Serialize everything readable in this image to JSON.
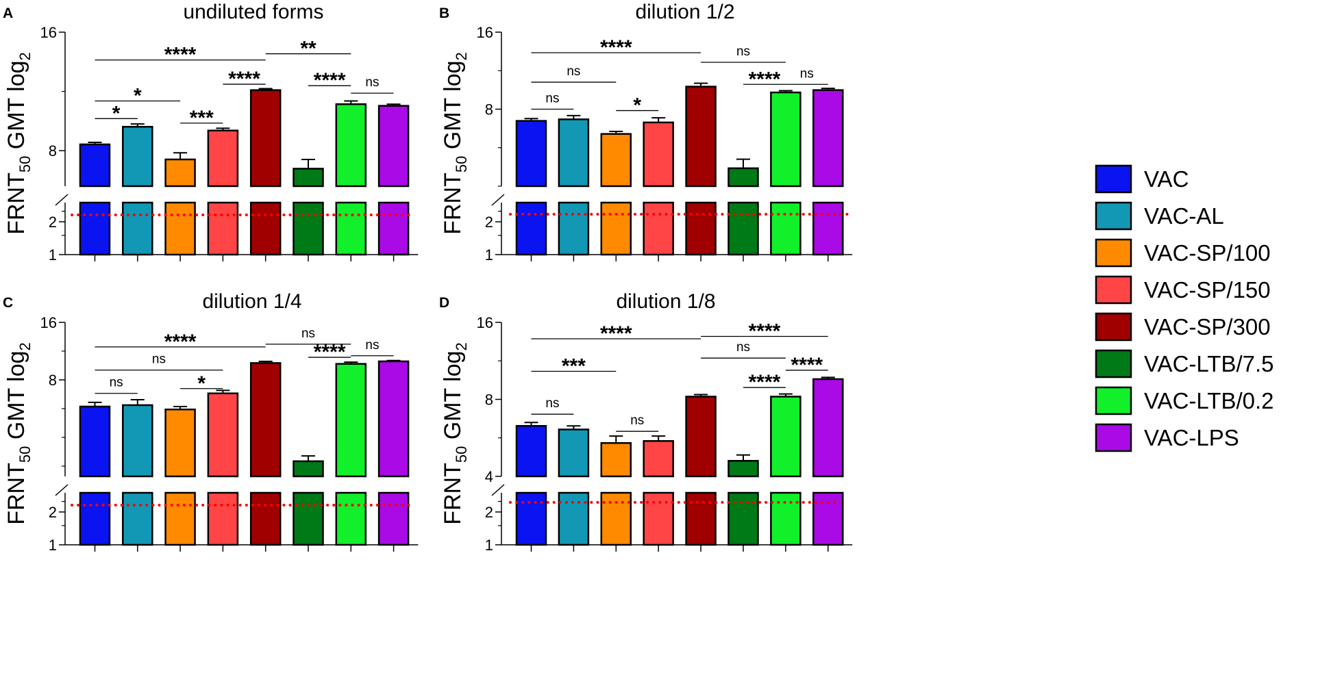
{
  "figure": {
    "ylabel_main": "FRNT",
    "ylabel_sub": "50",
    "ylabel_rest": " GMT log",
    "ylabel_sup": "2"
  },
  "colors": {
    "VAC": "#0a14f0",
    "VAC-AL": "#1298b5",
    "VAC-SP/100": "#ff8a00",
    "VAC-SP/150": "#ff4545",
    "VAC-SP/300": "#a00000",
    "VAC-LTB/7.5": "#007a16",
    "VAC-LTB/0.2": "#11f02a",
    "VAC-LPS": "#aa0ae6",
    "threshold": "#ff0000"
  },
  "legend": [
    "VAC",
    "VAC-AL",
    "VAC-SP/100",
    "VAC-SP/150",
    "VAC-SP/300",
    "VAC-LTB/7.5",
    "VAC-LTB/0.2",
    "VAC-LPS"
  ],
  "chart_data": [
    {
      "panel": "A",
      "title": "undiluted forms",
      "type": "bar",
      "categories": [
        "VAC",
        "VAC-AL",
        "VAC-SP/100",
        "VAC-SP/150",
        "VAC-SP/300",
        "VAC-LTB/7.5",
        "VAC-LTB/0.2",
        "VAC-LPS"
      ],
      "values": [
        8.3,
        9.2,
        7.6,
        9.0,
        11.4,
        7.2,
        10.5,
        10.4
      ],
      "errors": [
        0.1,
        0.15,
        0.3,
        0.12,
        0.1,
        0.4,
        0.2,
        0.1
      ],
      "ylim_upper": [
        6.5,
        16
      ],
      "ylim_lower": [
        1,
        3
      ],
      "yticks_upper": [
        "8",
        "16"
      ],
      "yticks_lower": [
        "1",
        "2"
      ],
      "threshold": 2.3,
      "comparisons": [
        {
          "from": 0,
          "to": 1,
          "label": "*",
          "y": 9.65
        },
        {
          "from": 0,
          "to": 2,
          "label": "*",
          "y": 10.7
        },
        {
          "from": 2,
          "to": 3,
          "label": "***",
          "y": 9.4
        },
        {
          "from": 3,
          "to": 4,
          "label": "****",
          "y": 11.8
        },
        {
          "from": 0,
          "to": 4,
          "label": "****",
          "y": 13.6
        },
        {
          "from": 4,
          "to": 6,
          "label": "**",
          "y": 14.1
        },
        {
          "from": 5,
          "to": 6,
          "label": "****",
          "y": 11.7
        },
        {
          "from": 6,
          "to": 7,
          "label": "ns",
          "y": 11.2
        }
      ]
    },
    {
      "panel": "B",
      "title": "dilution 1/2",
      "type": "bar",
      "categories": [
        "VAC",
        "VAC-AL",
        "VAC-SP/100",
        "VAC-SP/150",
        "VAC-SP/300",
        "VAC-LTB/7.5",
        "VAC-LTB/0.2",
        "VAC-LPS"
      ],
      "values": [
        7.2,
        7.3,
        6.4,
        7.1,
        9.8,
        4.7,
        9.3,
        9.5
      ],
      "errors": [
        0.15,
        0.25,
        0.15,
        0.3,
        0.3,
        0.4,
        0.15,
        0.15
      ],
      "ylim_upper": [
        4,
        16
      ],
      "ylim_lower": [
        1,
        3
      ],
      "yticks_upper": [
        "8",
        "16"
      ],
      "yticks_lower": [
        "1",
        "2"
      ],
      "threshold": 2.3,
      "comparisons": [
        {
          "from": 0,
          "to": 1,
          "label": "ns",
          "y": 8.0
        },
        {
          "from": 0,
          "to": 2,
          "label": "ns",
          "y": 10.2
        },
        {
          "from": 2,
          "to": 3,
          "label": "*",
          "y": 7.9
        },
        {
          "from": 0,
          "to": 4,
          "label": "****",
          "y": 13.3
        },
        {
          "from": 4,
          "to": 6,
          "label": "ns",
          "y": 12.2
        },
        {
          "from": 5,
          "to": 6,
          "label": "****",
          "y": 10.0
        },
        {
          "from": 6,
          "to": 7,
          "label": "ns",
          "y": 10.0
        }
      ]
    },
    {
      "panel": "C",
      "title": "dilution 1/4",
      "type": "bar",
      "categories": [
        "VAC",
        "VAC-AL",
        "VAC-SP/100",
        "VAC-SP/150",
        "VAC-SP/300",
        "VAC-LTB/7.5",
        "VAC-LTB/0.2",
        "VAC-LPS"
      ],
      "values": [
        5.8,
        5.9,
        5.6,
        6.8,
        9.8,
        3.0,
        9.7,
        10.0
      ],
      "errors": [
        0.3,
        0.4,
        0.2,
        0.25,
        0.2,
        0.2,
        0.2,
        0.1
      ],
      "ylim_upper": [
        2.5,
        16
      ],
      "ylim_lower": [
        1,
        3
      ],
      "yticks_upper": [
        "8",
        "16"
      ],
      "yticks_lower": [
        "1",
        "2"
      ],
      "threshold": 2.3,
      "comparisons": [
        {
          "from": 0,
          "to": 1,
          "label": "ns",
          "y": 6.8
        },
        {
          "from": 0,
          "to": 3,
          "label": "ns",
          "y": 9.0
        },
        {
          "from": 2,
          "to": 3,
          "label": "*",
          "y": 7.2
        },
        {
          "from": 0,
          "to": 4,
          "label": "****",
          "y": 11.9
        },
        {
          "from": 4,
          "to": 6,
          "label": "ns",
          "y": 12.3
        },
        {
          "from": 5,
          "to": 6,
          "label": "****",
          "y": 10.5
        },
        {
          "from": 6,
          "to": 7,
          "label": "ns",
          "y": 10.7
        }
      ]
    },
    {
      "panel": "D",
      "title": "dilution 1/8",
      "type": "bar",
      "categories": [
        "VAC",
        "VAC-AL",
        "VAC-SP/100",
        "VAC-SP/150",
        "VAC-SP/300",
        "VAC-LTB/7.5",
        "VAC-LTB/0.2",
        "VAC-LPS"
      ],
      "values": [
        6.3,
        6.1,
        5.4,
        5.5,
        8.2,
        4.6,
        8.2,
        9.6
      ],
      "errors": [
        0.2,
        0.2,
        0.35,
        0.25,
        0.15,
        0.25,
        0.2,
        0.15
      ],
      "ylim_upper": [
        4,
        16
      ],
      "ylim_lower": [
        1,
        3
      ],
      "yticks_upper": [
        "4",
        "8",
        "16"
      ],
      "yticks_lower": [
        "1",
        "2"
      ],
      "threshold": 2.3,
      "comparisons": [
        {
          "from": 0,
          "to": 1,
          "label": "ns",
          "y": 7.0
        },
        {
          "from": 0,
          "to": 2,
          "label": "***",
          "y": 10.3
        },
        {
          "from": 2,
          "to": 3,
          "label": "ns",
          "y": 6.0
        },
        {
          "from": 0,
          "to": 4,
          "label": "****",
          "y": 13.8
        },
        {
          "from": 4,
          "to": 6,
          "label": "ns",
          "y": 11.6
        },
        {
          "from": 4,
          "to": 7,
          "label": "****",
          "y": 14.1
        },
        {
          "from": 5,
          "to": 6,
          "label": "****",
          "y": 8.9
        },
        {
          "from": 6,
          "to": 7,
          "label": "****",
          "y": 10.4
        }
      ]
    }
  ]
}
